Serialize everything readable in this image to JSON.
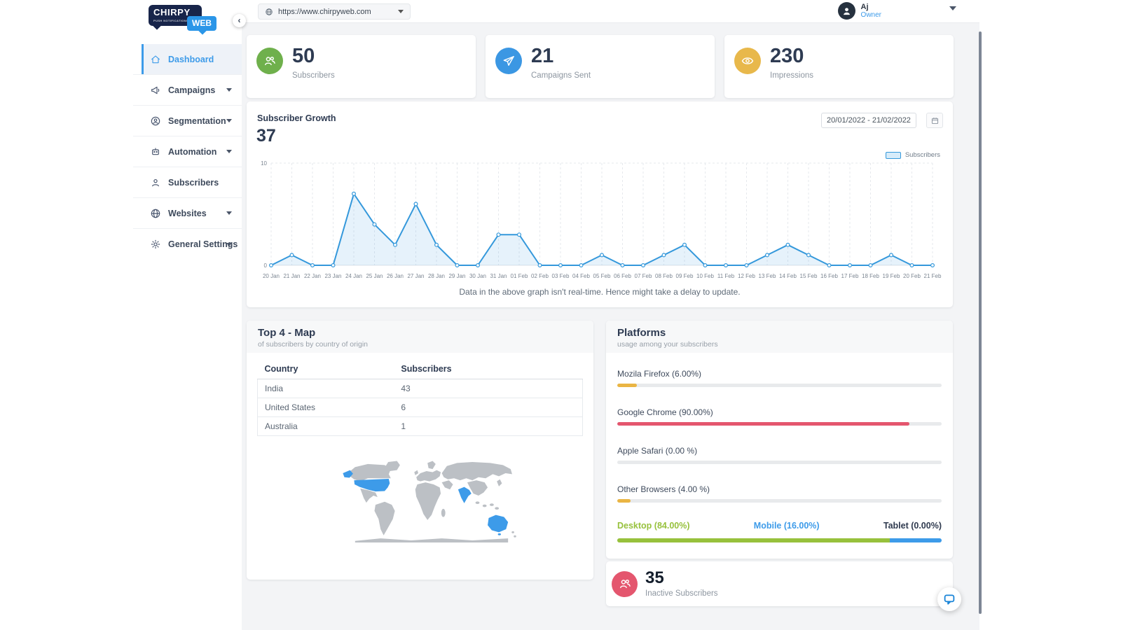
{
  "logo": {
    "main": "CHIRPY",
    "sub": "PUSH NOTIFICATIONS",
    "badge": "WEB"
  },
  "topbar": {
    "website_url": "https://www.chirpyweb.com",
    "user_name": "Aj",
    "user_role": "Owner"
  },
  "sidebar": {
    "items": [
      {
        "label": "Dashboard",
        "icon": "home-icon",
        "active": true,
        "expandable": false
      },
      {
        "label": "Campaigns",
        "icon": "megaphone-icon",
        "active": false,
        "expandable": true
      },
      {
        "label": "Segmentation",
        "icon": "segment-icon",
        "active": false,
        "expandable": true
      },
      {
        "label": "Automation",
        "icon": "automation-icon",
        "active": false,
        "expandable": true
      },
      {
        "label": "Subscribers",
        "icon": "person-icon",
        "active": false,
        "expandable": false
      },
      {
        "label": "Websites",
        "icon": "globe-icon",
        "active": false,
        "expandable": true
      },
      {
        "label": "General Settings",
        "icon": "gear-icon",
        "active": false,
        "expandable": true
      }
    ]
  },
  "stats": [
    {
      "value": "50",
      "label": "Subscribers",
      "icon": "users-icon",
      "color": "#6fb04c"
    },
    {
      "value": "21",
      "label": "Campaigns Sent",
      "icon": "paper-plane-icon",
      "color": "#3b97e3"
    },
    {
      "value": "230",
      "label": "Impressions",
      "icon": "eye-icon",
      "color": "#e8b84b"
    }
  ],
  "growth": {
    "title": "Subscriber Growth",
    "total": "37",
    "date_range": "20/01/2022 - 21/02/2022",
    "legend": "Subscribers",
    "note": "Data in the above graph isn't real-time. Hence might take a delay to update."
  },
  "chart_data": {
    "type": "area",
    "title": "Subscriber Growth",
    "x": [
      "20 Jan",
      "21 Jan",
      "22 Jan",
      "23 Jan",
      "24 Jan",
      "25 Jan",
      "26 Jan",
      "27 Jan",
      "28 Jan",
      "29 Jan",
      "30 Jan",
      "31 Jan",
      "01 Feb",
      "02 Feb",
      "03 Feb",
      "04 Feb",
      "05 Feb",
      "06 Feb",
      "07 Feb",
      "08 Feb",
      "09 Feb",
      "10 Feb",
      "11 Feb",
      "12 Feb",
      "13 Feb",
      "14 Feb",
      "15 Feb",
      "16 Feb",
      "17 Feb",
      "18 Feb",
      "19 Feb",
      "20 Feb",
      "21 Feb"
    ],
    "series": [
      {
        "name": "Subscribers",
        "values": [
          0,
          1,
          0,
          0,
          7,
          4,
          2,
          6,
          2,
          0,
          0,
          3,
          3,
          0,
          0,
          0,
          1,
          0,
          0,
          1,
          2,
          0,
          0,
          0,
          1,
          2,
          1,
          0,
          0,
          0,
          1,
          0,
          0
        ]
      }
    ],
    "ylim": [
      0,
      10
    ],
    "yticks": [
      0,
      10
    ],
    "grid": true,
    "legend_position": "top-right",
    "line_color": "#3498db",
    "fill_color": "#e9f5fc"
  },
  "top_map": {
    "title": "Top 4 - Map",
    "subtitle": "of subscribers by country of origin",
    "columns": [
      "Country",
      "Subscribers"
    ],
    "rows": [
      [
        "India",
        "43"
      ],
      [
        "United States",
        "6"
      ],
      [
        "Australia",
        "1"
      ]
    ],
    "highlighted_countries": [
      "United States",
      "India",
      "Australia"
    ],
    "map_colors": {
      "land": "#bcc0c5",
      "highlight": "#3d9be9"
    }
  },
  "platforms": {
    "title": "Platforms",
    "subtitle": "usage among your subscribers",
    "browsers": [
      {
        "label": "Mozila Firefox (6.00%)",
        "percent": 6,
        "color": "#eab543"
      },
      {
        "label": "Google Chrome (90.00%)",
        "percent": 90,
        "color": "#e4566e"
      },
      {
        "label": "Apple Safari (0.00 %)",
        "percent": 0,
        "color": "#eab543"
      },
      {
        "label": "Other Browsers (4.00 %)",
        "percent": 4,
        "color": "#eab543"
      }
    ],
    "devices": [
      {
        "label": "Desktop (84.00%)",
        "percent": 84,
        "color": "#97c13c"
      },
      {
        "label": "Mobile (16.00%)",
        "percent": 16,
        "color": "#3d9be9"
      },
      {
        "label": "Tablet (0.00%)",
        "percent": 0,
        "color": "#2f3a4f"
      }
    ]
  },
  "inactive": {
    "value": "35",
    "label": "Inactive Subscribers",
    "color": "#e4566e"
  }
}
